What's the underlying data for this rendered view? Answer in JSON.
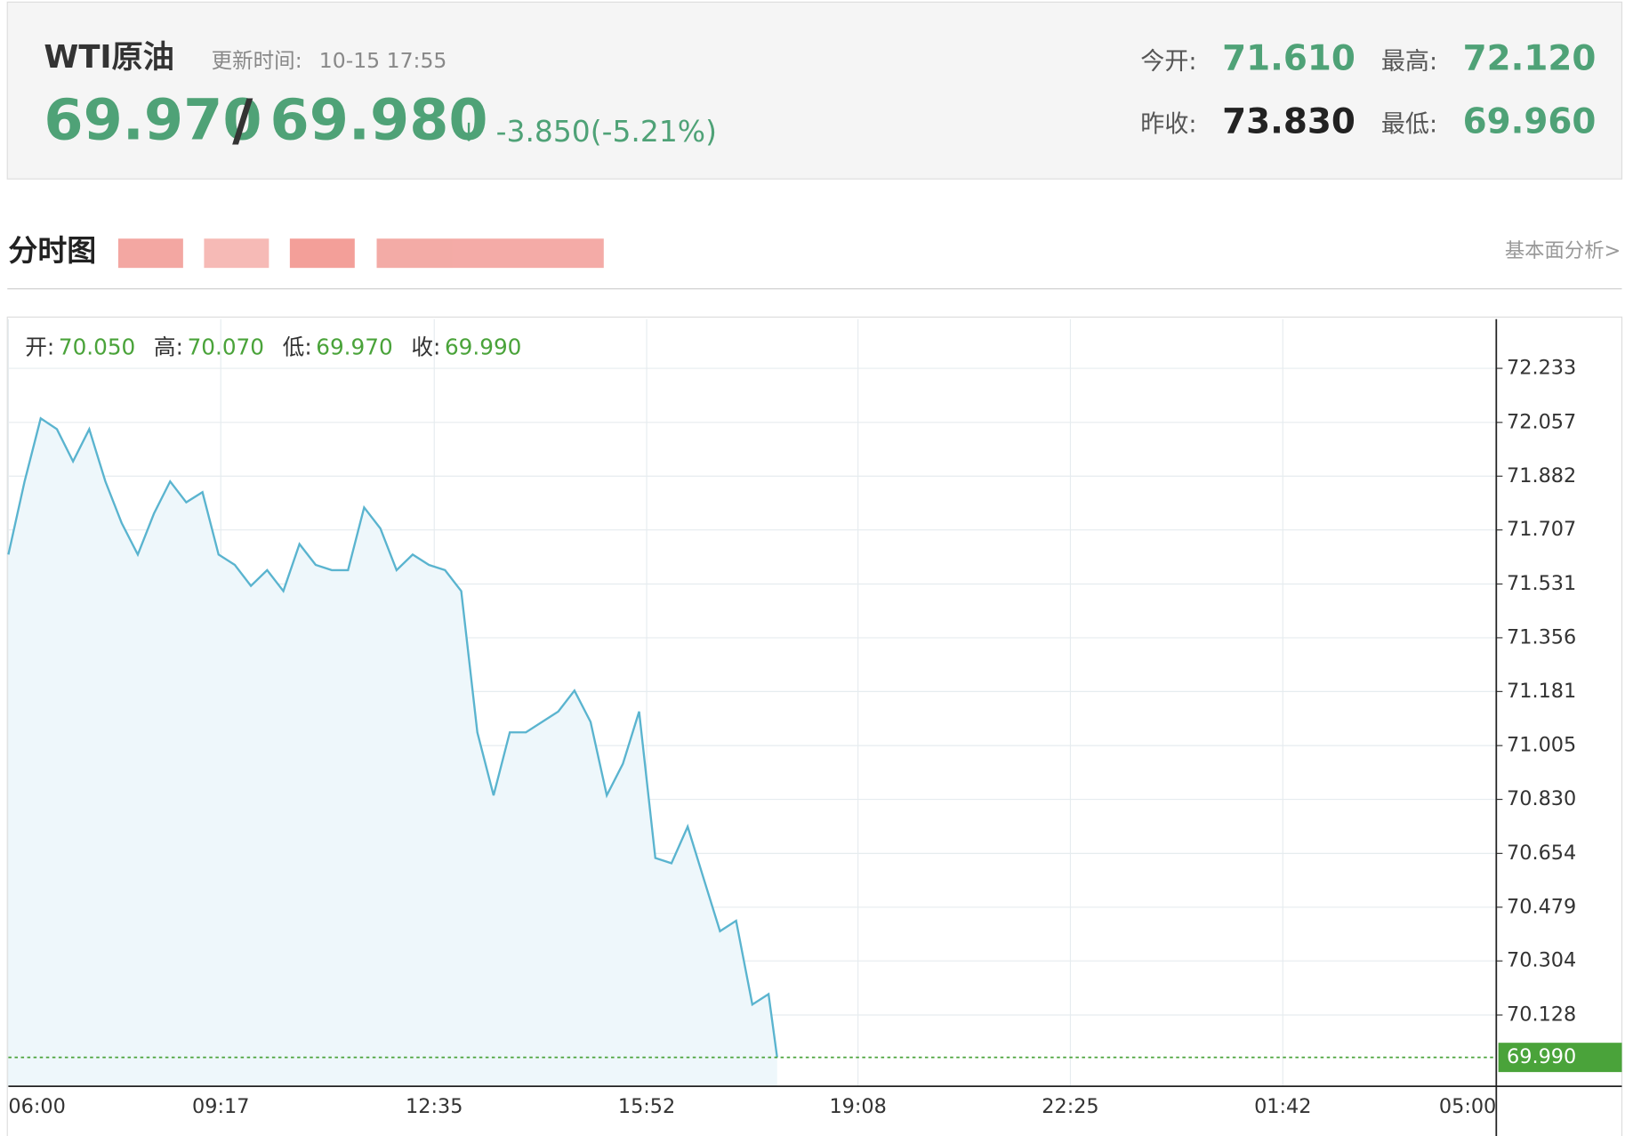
{
  "header": {
    "name": "WTI原油",
    "update_label": "更新时间:",
    "update_time": "10-15 17:55",
    "bid": "69.970",
    "separator": "/",
    "ask": "69.980",
    "arrow": "↓",
    "change": "-3.850(-5.21%)",
    "stats": [
      {
        "label": "今开:",
        "value": "71.610",
        "color": "#4fa277"
      },
      {
        "label": "最高:",
        "value": "72.120",
        "color": "#4fa277"
      },
      {
        "label": "昨收:",
        "value": "73.830",
        "color": "#222222"
      },
      {
        "label": "最低:",
        "value": "69.960",
        "color": "#4fa277"
      }
    ]
  },
  "tabs": {
    "title": "分时图",
    "link": "基本面分析>"
  },
  "chart_data": {
    "type": "line",
    "ohlc": [
      {
        "label": "开:",
        "value": "70.050"
      },
      {
        "label": "高:",
        "value": "70.070"
      },
      {
        "label": "低:",
        "value": "69.970"
      },
      {
        "label": "收:",
        "value": "69.990"
      }
    ],
    "x": [
      "06:00",
      "06:15",
      "06:30",
      "06:45",
      "07:00",
      "07:15",
      "07:30",
      "07:45",
      "08:00",
      "08:15",
      "08:30",
      "08:45",
      "09:00",
      "09:15",
      "09:30",
      "09:45",
      "10:00",
      "10:15",
      "10:30",
      "10:45",
      "11:00",
      "11:15",
      "11:30",
      "11:45",
      "12:00",
      "12:15",
      "12:30",
      "12:45",
      "13:00",
      "13:15",
      "13:30",
      "13:45",
      "14:00",
      "14:15",
      "14:30",
      "14:45",
      "15:00",
      "15:15",
      "15:30",
      "15:45",
      "16:00",
      "16:15",
      "16:30",
      "16:45",
      "17:00",
      "17:15",
      "17:30",
      "17:45",
      "17:53"
    ],
    "values": [
      71.627,
      71.865,
      72.07,
      72.035,
      71.93,
      72.035,
      71.865,
      71.73,
      71.627,
      71.76,
      71.865,
      71.797,
      71.83,
      71.627,
      71.593,
      71.525,
      71.576,
      71.508,
      71.661,
      71.593,
      71.576,
      71.576,
      71.78,
      71.712,
      71.576,
      71.627,
      71.593,
      71.576,
      71.508,
      71.048,
      70.843,
      71.048,
      71.048,
      71.082,
      71.116,
      71.184,
      71.082,
      70.843,
      70.946,
      71.116,
      70.639,
      70.622,
      70.741,
      70.571,
      70.401,
      70.435,
      70.162,
      70.196,
      69.99
    ],
    "color": "#5ab4cf",
    "fill": "#eef7fb",
    "xlim": [
      "06:00",
      "05:00"
    ],
    "xticks": [
      "06:00",
      "09:17",
      "12:35",
      "15:52",
      "19:08",
      "22:25",
      "01:42",
      "05:00"
    ],
    "ylim": [
      69.896,
      72.393
    ],
    "yticks": [
      72.233,
      72.057,
      71.882,
      71.707,
      71.531,
      71.356,
      71.181,
      71.005,
      {
        "value": 70.83,
        "label": "70.830"
      },
      70.654,
      70.479,
      70.304,
      70.128
    ],
    "grid": true,
    "last_value": 69.99,
    "last_label": "69.990",
    "last_color": "#4aa33a"
  }
}
